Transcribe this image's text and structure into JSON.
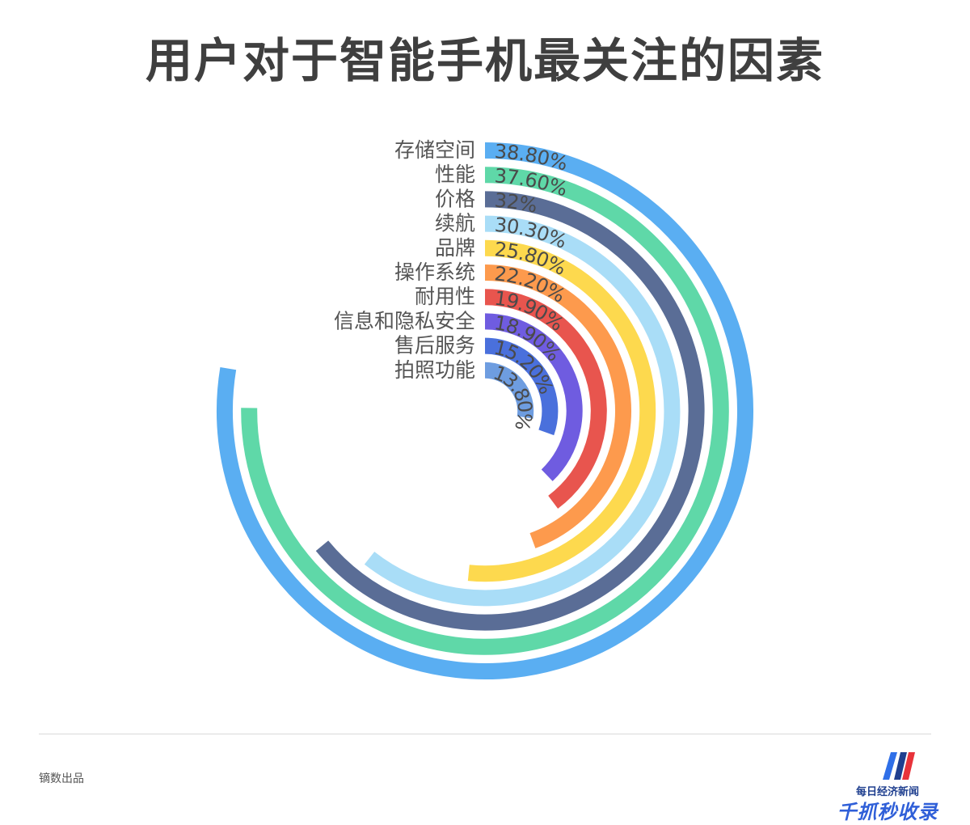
{
  "chart_data": {
    "type": "radial-bar",
    "title": "用户对于智能手机最关注的因素",
    "max_value": 50,
    "categories": [
      "存储空间",
      "性能",
      "价格",
      "续航",
      "品牌",
      "操作系统",
      "耐用性",
      "信息和隐私安全",
      "售后服务",
      "拍照功能"
    ],
    "values": [
      38.8,
      37.6,
      32,
      30.3,
      25.8,
      22.2,
      19.9,
      18.9,
      15.2,
      13.8
    ],
    "value_labels": [
      "38.80%",
      "37.60%",
      "32%",
      "30.30%",
      "25.80%",
      "22.20%",
      "19.90%",
      "18.90%",
      "15.20%",
      "13.80%"
    ],
    "colors": [
      "#5aaef2",
      "#5fd8a8",
      "#5a6d96",
      "#a9ddf7",
      "#fdd94e",
      "#fd9a4d",
      "#e8554e",
      "#6f5ce0",
      "#4a70dc",
      "#6e9de0"
    ],
    "grid": false
  },
  "footer": {
    "credit": "镝数出品"
  },
  "logo": {
    "subtitle": "每日经济新闻",
    "main": "千抓秒收录"
  }
}
